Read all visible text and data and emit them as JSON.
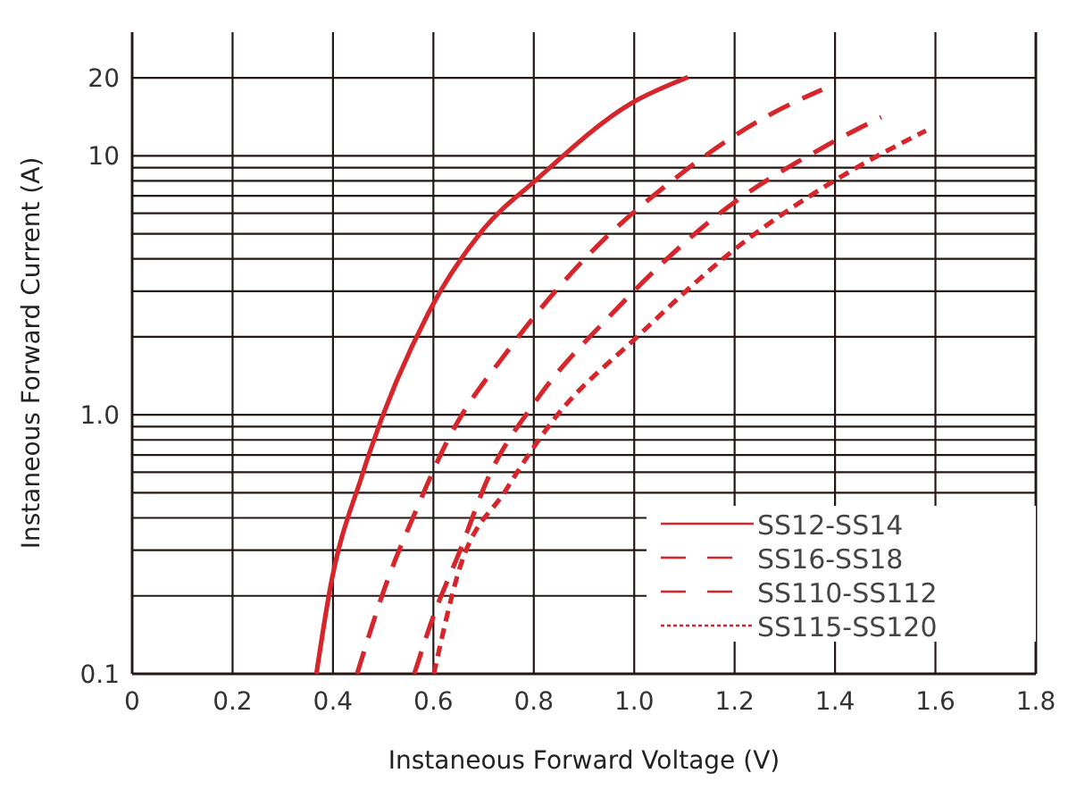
{
  "chart_data": {
    "type": "line",
    "xlabel": "Instaneous Forward Voltage (V)",
    "ylabel": "Instaneous Forward Current (A)",
    "log": "y",
    "grid": true,
    "legend": "bottom right",
    "xlim": [
      0,
      1.8
    ],
    "xticks": [
      0,
      0.2,
      0.4,
      0.6,
      0.8,
      {
        "value": 1,
        "label": "1.0"
      },
      1.2,
      1.4,
      1.6,
      1.8
    ],
    "ylim": [
      0.1,
      30
    ],
    "yticks": [
      0.1,
      {
        "value": 0.2,
        "label": null
      },
      {
        "value": 0.3,
        "label": null
      },
      {
        "value": 0.4,
        "label": null
      },
      {
        "value": 0.5,
        "label": null
      },
      {
        "value": 0.6,
        "label": null
      },
      {
        "value": 0.7,
        "label": null
      },
      {
        "value": 0.8,
        "label": null
      },
      {
        "value": 0.9,
        "label": null
      },
      {
        "value": 1,
        "label": "1.0"
      },
      {
        "value": 2,
        "label": null
      },
      {
        "value": 3,
        "label": null
      },
      {
        "value": 4,
        "label": null
      },
      {
        "value": 5,
        "label": null
      },
      {
        "value": 6,
        "label": null
      },
      {
        "value": 7,
        "label": null
      },
      {
        "value": 8,
        "label": null
      },
      {
        "value": 9,
        "label": null
      },
      10,
      20
    ],
    "series": [
      {
        "name": "SS12-SS14",
        "color": "#d7262b",
        "line_style": "solid",
        "x": [
          0.367,
          0.393,
          0.46,
          0.591,
          0.698,
          0.804,
          0.993,
          1.107
        ],
        "values": [
          0.1,
          0.207,
          0.6,
          2.49,
          5.16,
          8.05,
          15.9,
          20.1
        ]
      },
      {
        "name": "SS16-SS18",
        "color": "#d7262b",
        "line_style": "dashed",
        "x": [
          0.448,
          0.508,
          0.566,
          0.626,
          0.757,
          0.911,
          1.077,
          1.267,
          1.374
        ],
        "values": [
          0.1,
          0.228,
          0.43,
          0.78,
          1.86,
          4.18,
          8.05,
          14.3,
          18.0
        ]
      },
      {
        "name": "SS110-SS112",
        "color": "#d7262b",
        "line_style": "dashed",
        "x": [
          0.562,
          0.602,
          0.65,
          0.709,
          0.804,
          0.958,
          1.172,
          1.385,
          1.492
        ],
        "values": [
          0.1,
          0.171,
          0.289,
          0.57,
          1.13,
          2.48,
          6.03,
          11.0,
          14.1
        ]
      },
      {
        "name": "SS115-SS120",
        "color": "#d7262b",
        "line_style": "dotted",
        "x": [
          0.601,
          0.65,
          0.745,
          0.84,
          1.006,
          1.196,
          1.409,
          1.581
        ],
        "values": [
          0.1,
          0.247,
          0.514,
          0.96,
          2.0,
          4.29,
          8.24,
          12.5
        ]
      }
    ]
  }
}
